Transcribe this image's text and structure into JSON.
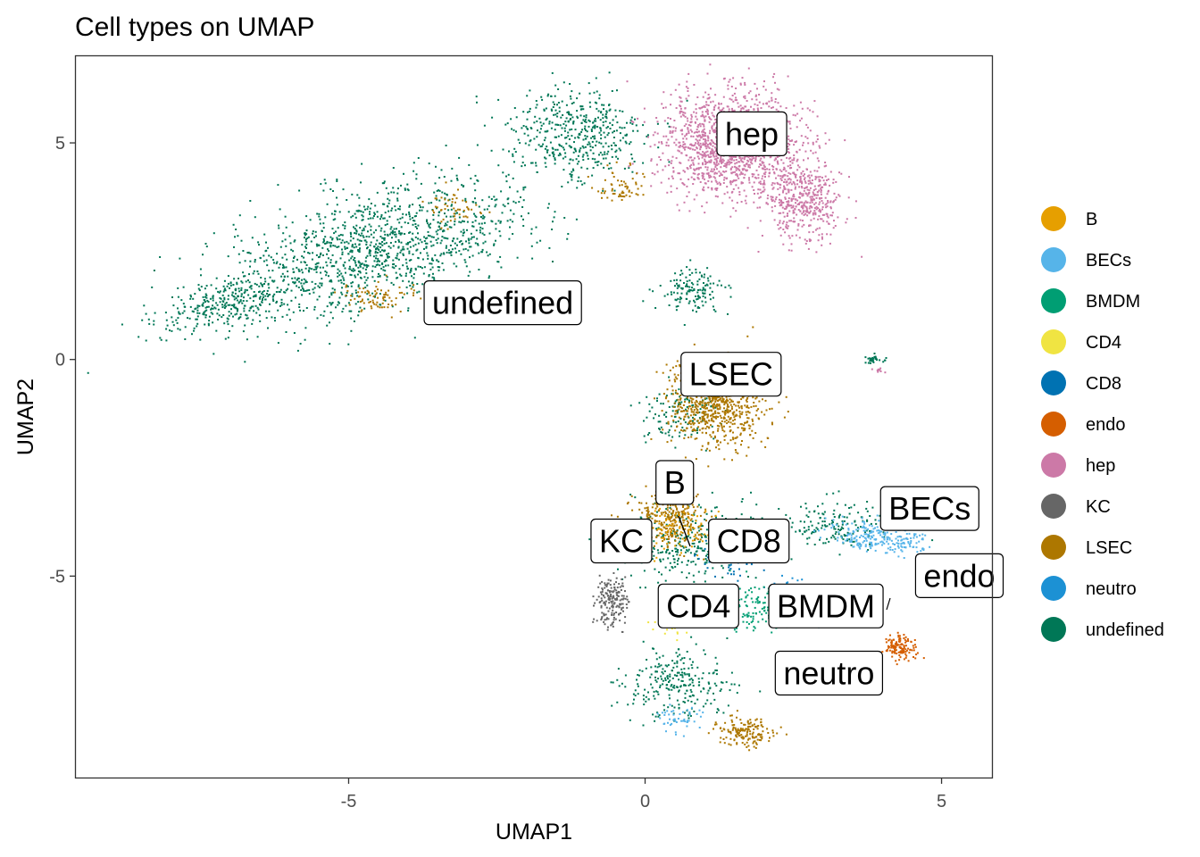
{
  "chart_data": {
    "type": "scatter",
    "title": "Cell types on UMAP",
    "xlabel": "UMAP1",
    "ylabel": "UMAP2",
    "xlim": [
      -9.6,
      5.85
    ],
    "ylim": [
      -9.65,
      7.0
    ],
    "xticks": [
      -5,
      0,
      5
    ],
    "xtick_labels": [
      "-5",
      "0",
      "5"
    ],
    "yticks": [
      -5,
      0,
      5
    ],
    "ytick_labels": [
      "-5",
      "0",
      "5"
    ],
    "grid": false,
    "legend_position": "right",
    "legend": [
      {
        "name": "B",
        "color": "#E69F00"
      },
      {
        "name": "BECs",
        "color": "#56B4E9"
      },
      {
        "name": "BMDM",
        "color": "#009E73"
      },
      {
        "name": "CD4",
        "color": "#F0E442"
      },
      {
        "name": "CD8",
        "color": "#0072B2"
      },
      {
        "name": "endo",
        "color": "#D55E00"
      },
      {
        "name": "hep",
        "color": "#CC79A7"
      },
      {
        "name": "KC",
        "color": "#666666"
      },
      {
        "name": "LSEC",
        "color": "#AD7700"
      },
      {
        "name": "neutro",
        "color": "#1C91D4"
      },
      {
        "name": "undefined",
        "color": "#007756"
      }
    ],
    "cluster_labels": [
      {
        "name": "hep",
        "x": 1.8,
        "y": 5.2
      },
      {
        "name": "undefined",
        "x": -2.4,
        "y": 1.3
      },
      {
        "name": "LSEC",
        "x": 1.45,
        "y": -0.35
      },
      {
        "name": "B",
        "x": 0.5,
        "y": -2.85
      },
      {
        "name": "KC",
        "x": -0.4,
        "y": -4.2
      },
      {
        "name": "CD8",
        "x": 1.75,
        "y": -4.2
      },
      {
        "name": "BECs",
        "x": 4.8,
        "y": -3.45
      },
      {
        "name": "endo",
        "x": 5.3,
        "y": -5.0
      },
      {
        "name": "CD4",
        "x": 0.9,
        "y": -5.7
      },
      {
        "name": "BMDM",
        "x": 3.05,
        "y": -5.7
      },
      {
        "name": "neutro",
        "x": 3.1,
        "y": -7.25
      }
    ],
    "clusters": [
      {
        "type": "undefined",
        "cx": -4.5,
        "cy": 2.6,
        "sx": 2.6,
        "sy": 1.2,
        "n": 1300,
        "rot": 0.42
      },
      {
        "type": "undefined",
        "cx": -7.0,
        "cy": 1.3,
        "sx": 1.3,
        "sy": 0.45,
        "n": 300,
        "rot": 0.35
      },
      {
        "type": "undefined",
        "cx": -1.2,
        "cy": 5.2,
        "sx": 1.1,
        "sy": 1.0,
        "n": 450,
        "rot": 0
      },
      {
        "type": "undefined",
        "cx": 0.8,
        "cy": 1.6,
        "sx": 0.5,
        "sy": 0.45,
        "n": 140,
        "rot": 0
      },
      {
        "type": "undefined",
        "cx": 0.55,
        "cy": -7.5,
        "sx": 0.8,
        "sy": 0.7,
        "n": 260,
        "rot": 0
      },
      {
        "type": "undefined",
        "cx": 0.7,
        "cy": -4.2,
        "sx": 0.9,
        "sy": 1.0,
        "n": 300,
        "rot": 0
      },
      {
        "type": "undefined",
        "cx": 3.2,
        "cy": -3.8,
        "sx": 0.8,
        "sy": 0.5,
        "n": 160,
        "rot": 0
      },
      {
        "type": "undefined",
        "cx": 0.6,
        "cy": -1.2,
        "sx": 0.55,
        "sy": 0.7,
        "n": 140,
        "rot": 0
      },
      {
        "type": "hep",
        "cx": 1.5,
        "cy": 5.0,
        "sx": 1.1,
        "sy": 1.05,
        "n": 1500,
        "rot": 0
      },
      {
        "type": "hep",
        "cx": 2.7,
        "cy": 3.6,
        "sx": 0.55,
        "sy": 0.85,
        "n": 420,
        "rot": 0
      },
      {
        "type": "LSEC",
        "cx": 1.2,
        "cy": -1.0,
        "sx": 0.75,
        "sy": 0.9,
        "n": 800,
        "rot": 0
      },
      {
        "type": "LSEC",
        "cx": 0.4,
        "cy": -3.7,
        "sx": 0.6,
        "sy": 0.6,
        "n": 300,
        "rot": 0
      },
      {
        "type": "LSEC",
        "cx": 1.7,
        "cy": -8.6,
        "sx": 0.45,
        "sy": 0.3,
        "n": 160,
        "rot": 0
      },
      {
        "type": "LSEC",
        "cx": -0.4,
        "cy": 4.0,
        "sx": 0.4,
        "sy": 0.4,
        "n": 60,
        "rot": 0
      },
      {
        "type": "LSEC",
        "cx": -4.6,
        "cy": 1.4,
        "sx": 0.6,
        "sy": 0.3,
        "n": 80,
        "rot": 0
      },
      {
        "type": "LSEC",
        "cx": -3.3,
        "cy": 3.5,
        "sx": 0.5,
        "sy": 0.35,
        "n": 50,
        "rot": 0
      },
      {
        "type": "B",
        "cx": 0.6,
        "cy": -3.9,
        "sx": 0.55,
        "sy": 0.5,
        "n": 80,
        "rot": 0
      },
      {
        "type": "KC",
        "cx": -0.55,
        "cy": -5.6,
        "sx": 0.25,
        "sy": 0.5,
        "n": 180,
        "rot": 0
      },
      {
        "type": "CD8",
        "cx": 1.4,
        "cy": -4.5,
        "sx": 0.5,
        "sy": 0.5,
        "n": 70,
        "rot": 0
      },
      {
        "type": "CD4",
        "cx": 0.5,
        "cy": -5.9,
        "sx": 0.4,
        "sy": 0.4,
        "n": 50,
        "rot": 0
      },
      {
        "type": "BMDM",
        "cx": 1.8,
        "cy": -5.7,
        "sx": 0.55,
        "sy": 0.5,
        "n": 120,
        "rot": 0
      },
      {
        "type": "neutro",
        "cx": 2.6,
        "cy": -5.6,
        "sx": 0.4,
        "sy": 0.5,
        "n": 80,
        "rot": 0
      },
      {
        "type": "BECs",
        "cx": 3.95,
        "cy": -4.1,
        "sx": 0.75,
        "sy": 0.3,
        "n": 240,
        "rot": -0.2
      },
      {
        "type": "BECs",
        "cx": 0.6,
        "cy": -8.3,
        "sx": 0.35,
        "sy": 0.25,
        "n": 50,
        "rot": 0
      },
      {
        "type": "endo",
        "cx": 4.3,
        "cy": -6.65,
        "sx": 0.22,
        "sy": 0.25,
        "n": 130,
        "rot": 0
      },
      {
        "type": "undefined",
        "cx": 3.85,
        "cy": 0,
        "sx": 0.16,
        "sy": 0.1,
        "n": 30,
        "rot": 0
      },
      {
        "type": "hep",
        "cx": 3.95,
        "cy": -0.25,
        "sx": 0.08,
        "sy": 0.05,
        "n": 12,
        "rot": 0
      }
    ]
  }
}
